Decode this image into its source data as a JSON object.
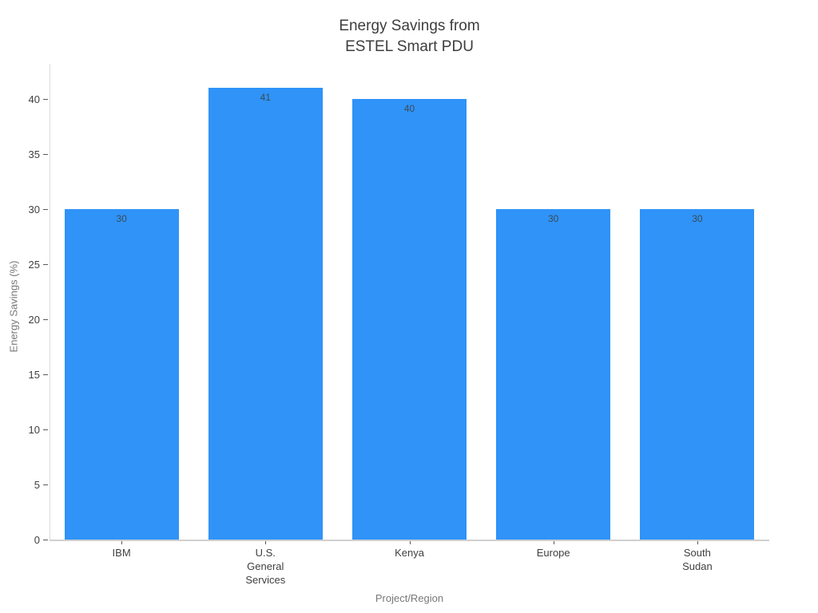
{
  "chart_data": {
    "type": "bar",
    "title": "Energy Savings from\nESTEL Smart PDU",
    "xlabel": "Project/Region",
    "ylabel": "Energy Savings (%)",
    "categories": [
      "IBM",
      "U.S.\nGeneral\nServices",
      "Kenya",
      "Europe",
      "South\nSudan"
    ],
    "values": [
      30,
      41,
      40,
      30,
      30
    ],
    "value_labels": [
      "30",
      "41",
      "40",
      "30",
      "30"
    ],
    "yticks": [
      0,
      5,
      10,
      15,
      20,
      25,
      30,
      35,
      40
    ],
    "ylim": [
      0,
      43.2
    ],
    "bar_color": "#2f93f8",
    "value_label_color": "#3e4a58",
    "grid": false,
    "legend_position": "none",
    "show_values": true
  }
}
